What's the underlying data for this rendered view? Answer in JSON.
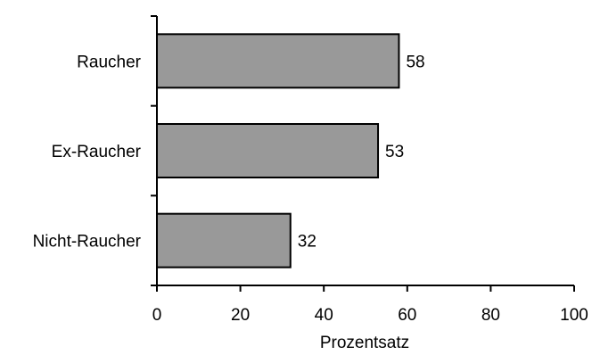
{
  "chart_data": {
    "type": "bar",
    "orientation": "horizontal",
    "categories": [
      "Raucher",
      "Ex-Raucher",
      "Nicht-Raucher"
    ],
    "values": [
      58,
      53,
      32
    ],
    "data_labels": [
      "58",
      "53",
      "32"
    ],
    "xlabel": "Prozentsatz",
    "ylabel": "",
    "xlim": [
      0,
      100
    ],
    "x_ticks": [
      0,
      20,
      40,
      60,
      80,
      100
    ],
    "x_tick_labels": [
      "0",
      "20",
      "40",
      "60",
      "80",
      "100"
    ],
    "grid": false,
    "legend": "none",
    "colors": {
      "bar_fill": "#999999",
      "bar_stroke": "#000000",
      "axis": "#000000",
      "background": "#ffffff"
    }
  }
}
